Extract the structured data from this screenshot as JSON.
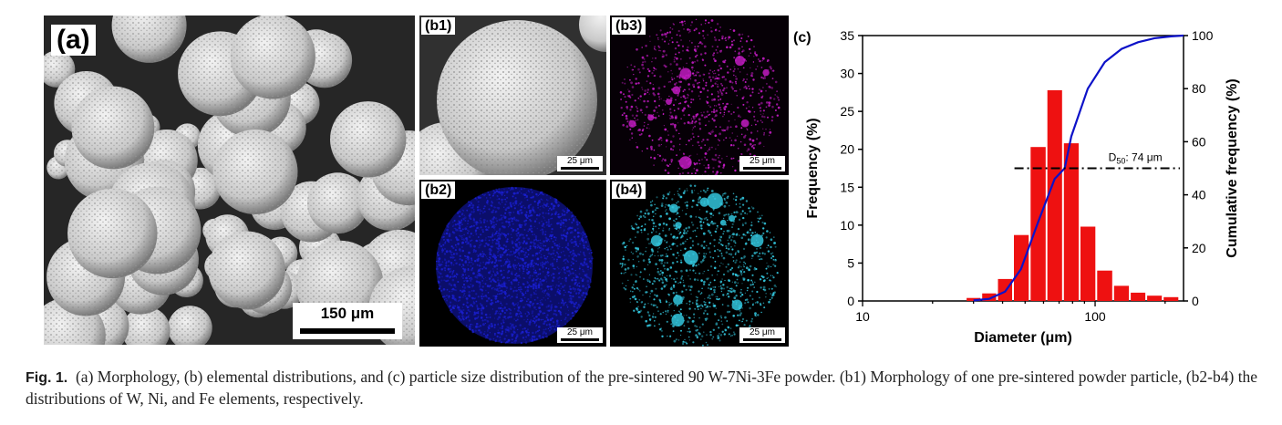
{
  "figure": {
    "panel_a": {
      "tag": "(a)",
      "scale_label": "150 μm"
    },
    "panel_b1": {
      "tag": "(b1)",
      "scale_label": "25 μm"
    },
    "panel_b2": {
      "tag": "(b2)",
      "scale_label": "25 μm"
    },
    "panel_b3": {
      "tag": "(b3)",
      "scale_label": "25 μm"
    },
    "panel_b4": {
      "tag": "(b4)",
      "scale_label": "25 μm"
    },
    "panel_c": {
      "tag": "(c)"
    }
  },
  "caption": {
    "label": "Fig. 1.",
    "text": "(a) Morphology, (b) elemental distributions, and (c) particle size distribution of the pre-sintered 90 W-7Ni-3Fe powder. (b1) Morphology of one pre-sintered powder particle, (b2-b4) the distributions of W, Ni, and Fe elements, respectively."
  },
  "colors": {
    "bar": "#ee1111",
    "curve": "#0d12c8",
    "w_map": "#1a1fd0",
    "ni_map": "#c21bc2",
    "fe_map": "#33c6dd"
  },
  "chart_data": {
    "type": "bar",
    "x_scale": "log",
    "xlabel": "Diameter (μm)",
    "ylabel": "Frequency (%)",
    "ylabel_right": "Cumulative frequency (%)",
    "xlim": [
      10,
      240
    ],
    "ylim": [
      0,
      35
    ],
    "ylim_right": [
      0,
      100
    ],
    "x_ticks": [
      10,
      100
    ],
    "y_ticks": [
      0,
      5,
      10,
      15,
      20,
      25,
      30,
      35
    ],
    "y_ticks_right": [
      0,
      20,
      40,
      60,
      80,
      100
    ],
    "bars": {
      "x": [
        30,
        35,
        41,
        48,
        57,
        67,
        79,
        93,
        110,
        130,
        153,
        180,
        212
      ],
      "values": [
        0.4,
        1.0,
        2.9,
        8.7,
        20.3,
        27.8,
        20.8,
        9.8,
        4.0,
        2.0,
        1.1,
        0.7,
        0.5
      ]
    },
    "cumulative": {
      "name": "Cumulative frequency (%)",
      "x": [
        30,
        35,
        41,
        48,
        57,
        67,
        74,
        79,
        93,
        110,
        130,
        153,
        180,
        212,
        240
      ],
      "values": [
        0.2,
        0.8,
        3.5,
        12,
        30,
        46,
        50,
        62,
        80,
        90,
        95,
        97.5,
        99,
        99.7,
        100
      ]
    },
    "d50": {
      "label_main": "D",
      "label_sub": "50",
      "label_value": ":  74 μm",
      "value": 74,
      "line_y": 50
    }
  }
}
